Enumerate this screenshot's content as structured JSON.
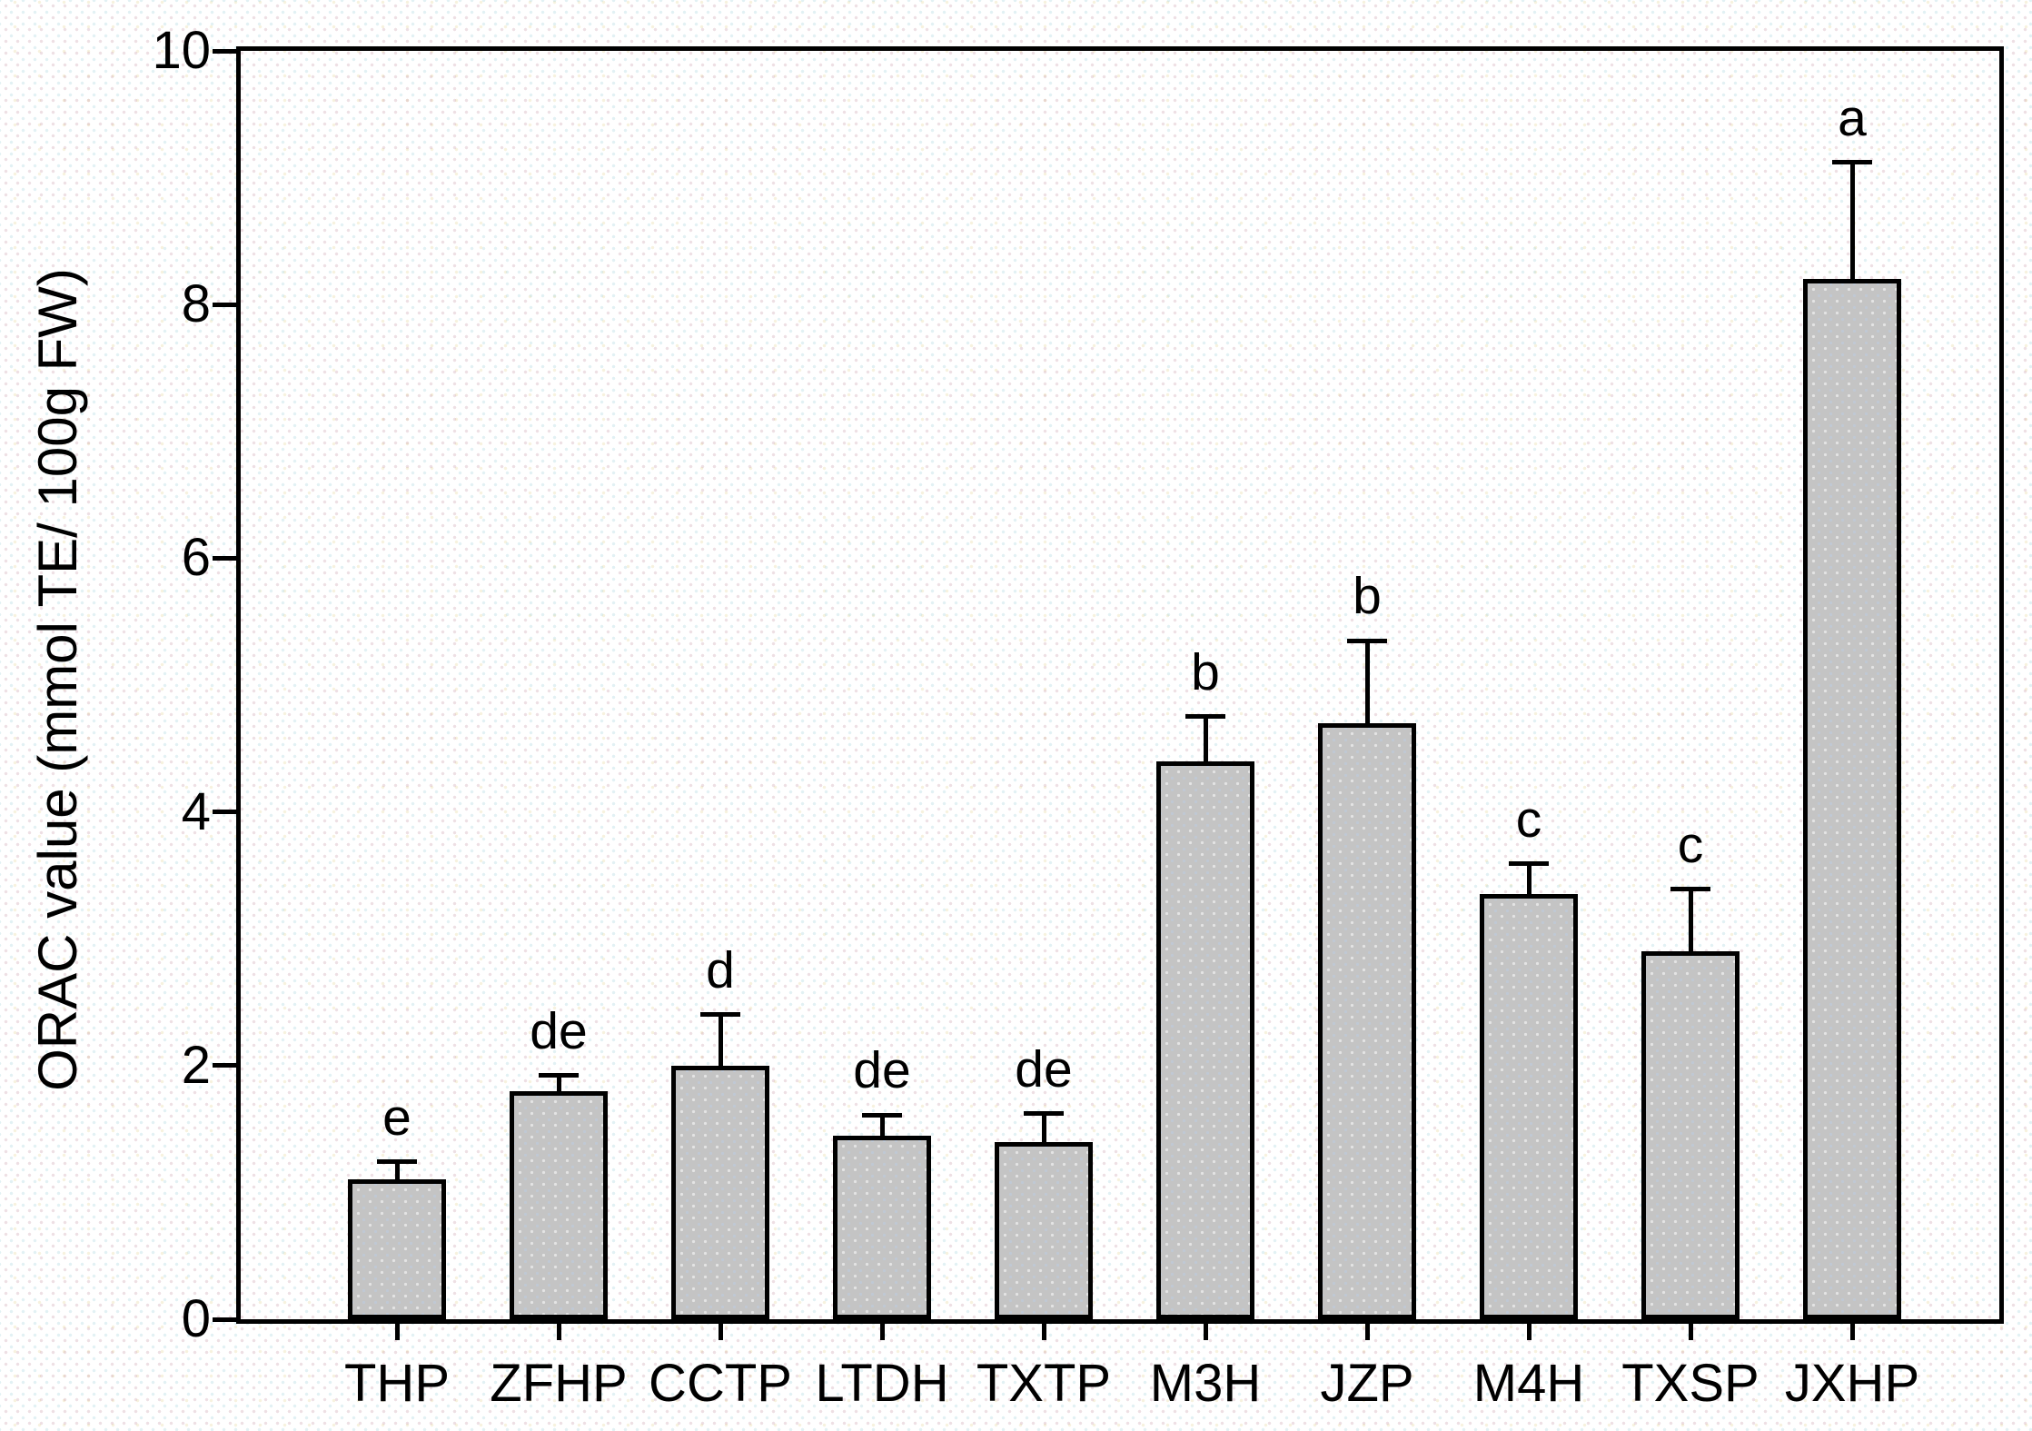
{
  "chart_data": {
    "type": "bar",
    "title": "",
    "xlabel": "",
    "ylabel": "ORAC value (mmol TE/ 100g FW)",
    "ylim": [
      0,
      10
    ],
    "yticks": [
      0,
      2,
      4,
      6,
      8,
      10
    ],
    "grid": false,
    "legend": "none",
    "categories": [
      "THP",
      "ZFHP",
      "CCTP",
      "LTDH",
      "TXTP",
      "M3H",
      "JZP",
      "M4H",
      "TXSP",
      "JXHP"
    ],
    "series": [
      {
        "name": "ORAC value",
        "values": [
          1.1,
          1.8,
          2.0,
          1.45,
          1.4,
          4.4,
          4.7,
          3.35,
          2.9,
          8.2
        ],
        "errors_plus": [
          0.14,
          0.12,
          0.4,
          0.16,
          0.22,
          0.35,
          0.65,
          0.24,
          0.49,
          0.92
        ],
        "significance_letters": [
          "e",
          "de",
          "d",
          "de",
          "de",
          "b",
          "b",
          "c",
          "c",
          "a"
        ]
      }
    ],
    "colors": {
      "bar_fill": "#c4c4c4",
      "bar_border": "#000000",
      "axis": "#000000",
      "text": "#000000",
      "background": "#ffffff"
    }
  }
}
